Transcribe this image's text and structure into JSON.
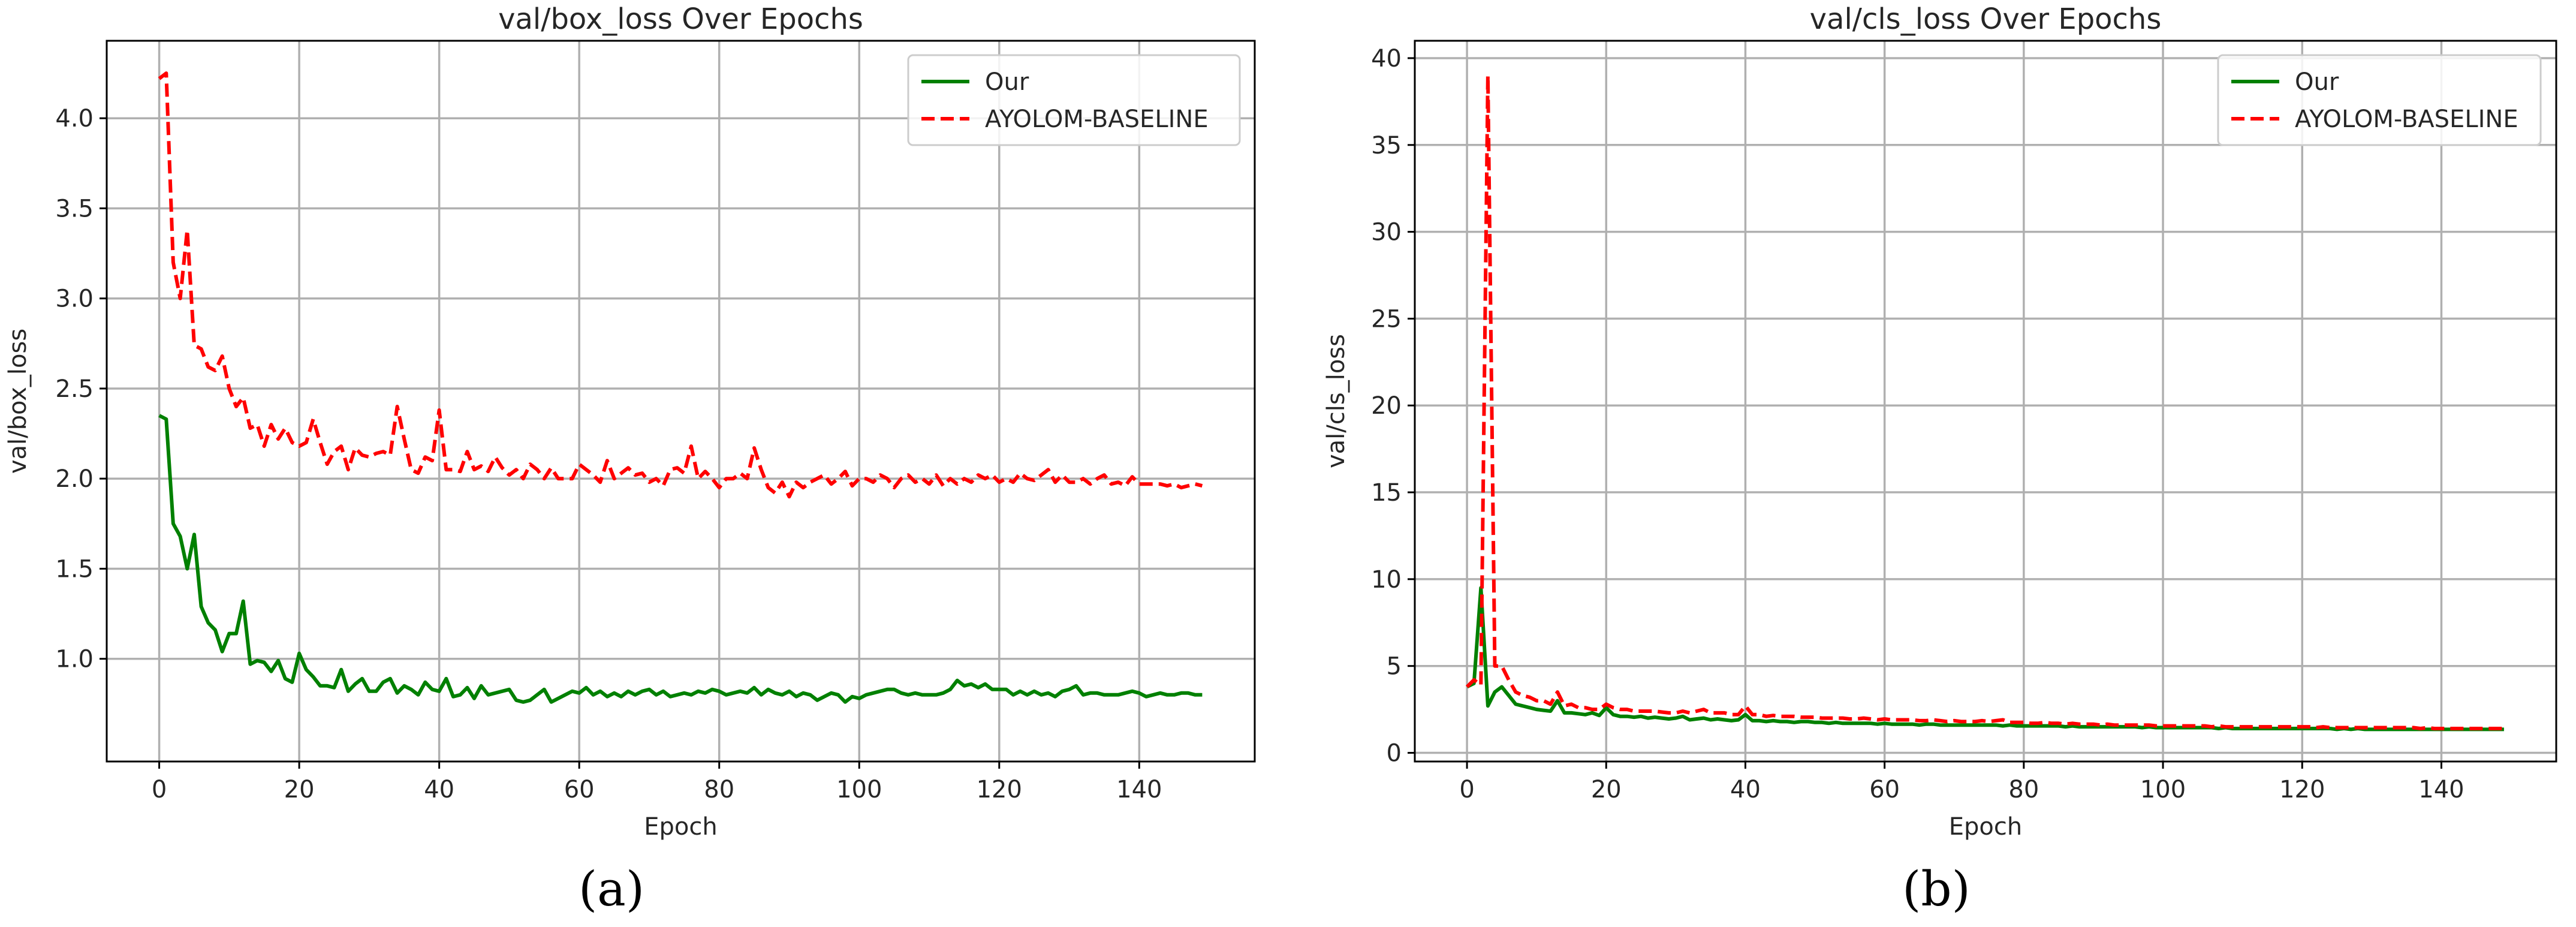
{
  "chart_data": [
    {
      "type": "line",
      "title": "val/box_loss Over Epochs",
      "xlabel": "Epoch",
      "ylabel": "val/box_loss",
      "caption": "(a)",
      "xlim": [
        -7.5,
        156.5
      ],
      "ylim": [
        0.43,
        4.43
      ],
      "xticks": [
        0,
        20,
        40,
        60,
        80,
        100,
        120,
        140
      ],
      "yticks": [
        1.0,
        1.5,
        2.0,
        2.5,
        3.0,
        3.5,
        4.0
      ],
      "ytick_labels": [
        "1.0",
        "1.5",
        "2.0",
        "2.5",
        "3.0",
        "3.5",
        "4.0"
      ],
      "grid": true,
      "legend_position": "top-right",
      "series": [
        {
          "name": "Our",
          "color": "#008000",
          "style": "solid",
          "values": [
            2.35,
            2.33,
            1.75,
            1.68,
            1.5,
            1.69,
            1.29,
            1.2,
            1.16,
            1.04,
            1.14,
            1.14,
            1.32,
            0.97,
            0.99,
            0.98,
            0.93,
            0.99,
            0.89,
            0.87,
            1.03,
            0.94,
            0.9,
            0.85,
            0.85,
            0.84,
            0.94,
            0.82,
            0.86,
            0.89,
            0.82,
            0.82,
            0.87,
            0.89,
            0.81,
            0.85,
            0.83,
            0.8,
            0.87,
            0.83,
            0.82,
            0.89,
            0.79,
            0.8,
            0.84,
            0.78,
            0.85,
            0.8,
            0.81,
            0.82,
            0.83,
            0.77,
            0.76,
            0.77,
            0.8,
            0.83,
            0.76,
            0.78,
            0.8,
            0.82,
            0.81,
            0.84,
            0.8,
            0.82,
            0.79,
            0.81,
            0.79,
            0.82,
            0.8,
            0.82,
            0.83,
            0.8,
            0.82,
            0.79,
            0.8,
            0.81,
            0.8,
            0.82,
            0.81,
            0.83,
            0.82,
            0.8,
            0.81,
            0.82,
            0.81,
            0.84,
            0.8,
            0.83,
            0.81,
            0.8,
            0.82,
            0.79,
            0.81,
            0.8,
            0.77,
            0.79,
            0.81,
            0.8,
            0.76,
            0.79,
            0.78,
            0.8,
            0.81,
            0.82,
            0.83,
            0.83,
            0.81,
            0.8,
            0.81,
            0.8,
            0.8,
            0.8,
            0.81,
            0.83,
            0.88,
            0.85,
            0.86,
            0.84,
            0.86,
            0.83,
            0.83,
            0.83,
            0.8,
            0.82,
            0.8,
            0.82,
            0.8,
            0.81,
            0.79,
            0.82,
            0.83,
            0.85,
            0.8,
            0.81,
            0.81,
            0.8,
            0.8,
            0.8,
            0.81,
            0.82,
            0.81,
            0.79,
            0.8,
            0.81,
            0.8,
            0.8,
            0.81,
            0.81,
            0.8,
            0.8
          ]
        },
        {
          "name": "AYOLOM-BASELINE",
          "color": "#ff0000",
          "style": "dashed",
          "values": [
            4.22,
            4.25,
            3.2,
            3.0,
            3.38,
            2.74,
            2.72,
            2.62,
            2.6,
            2.68,
            2.5,
            2.4,
            2.45,
            2.28,
            2.3,
            2.18,
            2.3,
            2.22,
            2.28,
            2.2,
            2.18,
            2.2,
            2.33,
            2.2,
            2.08,
            2.15,
            2.18,
            2.05,
            2.17,
            2.13,
            2.12,
            2.14,
            2.15,
            2.13,
            2.4,
            2.22,
            2.05,
            2.03,
            2.12,
            2.1,
            2.38,
            2.05,
            2.05,
            2.04,
            2.15,
            2.05,
            2.07,
            2.04,
            2.12,
            2.06,
            2.02,
            2.05,
            2.0,
            2.08,
            2.05,
            2.0,
            2.06,
            2.0,
            2.0,
            2.0,
            2.08,
            2.05,
            2.02,
            1.98,
            2.1,
            2.0,
            2.03,
            2.06,
            2.02,
            2.03,
            1.98,
            2.0,
            1.96,
            2.05,
            2.06,
            2.03,
            2.18,
            2.0,
            2.04,
            2.0,
            1.95,
            2.0,
            2.0,
            2.03,
            2.0,
            2.17,
            2.05,
            1.95,
            1.92,
            1.98,
            1.9,
            1.98,
            1.95,
            1.98,
            2.0,
            2.02,
            1.97,
            2.0,
            2.04,
            1.96,
            2.0,
            2.0,
            1.98,
            2.02,
            2.0,
            1.95,
            2.0,
            2.02,
            1.98,
            2.0,
            1.97,
            2.02,
            1.96,
            2.0,
            1.97,
            2.0,
            1.98,
            2.02,
            2.0,
            2.02,
            1.98,
            2.0,
            1.98,
            2.03,
            2.0,
            1.99,
            2.02,
            2.05,
            1.98,
            2.02,
            1.98,
            1.98,
            2.0,
            1.97,
            2.0,
            2.02,
            1.97,
            1.98,
            1.96,
            2.01,
            1.97,
            1.97,
            1.97,
            1.97,
            1.96,
            1.97,
            1.95,
            1.96,
            1.97,
            1.96
          ]
        }
      ]
    },
    {
      "type": "line",
      "title": "val/cls_loss Over Epochs",
      "xlabel": "Epoch",
      "ylabel": "val/cls_loss",
      "caption": "(b)",
      "xlim": [
        -7.5,
        156.5
      ],
      "ylim": [
        -0.5,
        41
      ],
      "xticks": [
        0,
        20,
        40,
        60,
        80,
        100,
        120,
        140
      ],
      "yticks": [
        0,
        5,
        10,
        15,
        20,
        25,
        30,
        35,
        40
      ],
      "ytick_labels": [
        "0",
        "5",
        "10",
        "15",
        "20",
        "25",
        "30",
        "35",
        "40"
      ],
      "grid": true,
      "legend_position": "top-right",
      "series": [
        {
          "name": "Our",
          "color": "#008000",
          "style": "solid",
          "values": [
            3.8,
            4.0,
            9.5,
            2.7,
            3.5,
            3.8,
            3.3,
            2.8,
            2.7,
            2.6,
            2.5,
            2.45,
            2.4,
            3.0,
            2.3,
            2.3,
            2.25,
            2.2,
            2.3,
            2.15,
            2.6,
            2.2,
            2.1,
            2.1,
            2.05,
            2.1,
            2.0,
            2.05,
            2.0,
            1.95,
            2.0,
            2.1,
            1.9,
            1.95,
            2.0,
            1.9,
            1.95,
            1.9,
            1.85,
            1.9,
            2.2,
            1.85,
            1.85,
            1.8,
            1.85,
            1.8,
            1.8,
            1.75,
            1.8,
            1.8,
            1.75,
            1.75,
            1.7,
            1.75,
            1.7,
            1.7,
            1.7,
            1.7,
            1.7,
            1.65,
            1.7,
            1.65,
            1.65,
            1.65,
            1.65,
            1.6,
            1.65,
            1.65,
            1.6,
            1.6,
            1.6,
            1.6,
            1.6,
            1.6,
            1.6,
            1.6,
            1.6,
            1.55,
            1.6,
            1.55,
            1.55,
            1.55,
            1.55,
            1.55,
            1.55,
            1.55,
            1.5,
            1.55,
            1.5,
            1.5,
            1.5,
            1.5,
            1.5,
            1.5,
            1.5,
            1.5,
            1.5,
            1.45,
            1.5,
            1.45,
            1.45,
            1.45,
            1.45,
            1.45,
            1.45,
            1.45,
            1.45,
            1.45,
            1.4,
            1.45,
            1.4,
            1.4,
            1.4,
            1.4,
            1.4,
            1.4,
            1.4,
            1.4,
            1.4,
            1.4,
            1.4,
            1.4,
            1.4,
            1.4,
            1.4,
            1.35,
            1.4,
            1.35,
            1.4,
            1.35,
            1.35,
            1.35,
            1.35,
            1.35,
            1.35,
            1.35,
            1.35,
            1.35,
            1.35,
            1.35,
            1.35,
            1.35,
            1.35,
            1.35,
            1.35,
            1.35,
            1.35,
            1.35,
            1.35,
            1.35
          ]
        },
        {
          "name": "AYOLOM-BASELINE",
          "color": "#ff0000",
          "style": "dashed",
          "values": [
            3.8,
            4.2,
            3.9,
            39.0,
            5.0,
            5.0,
            4.2,
            3.5,
            3.3,
            3.2,
            3.0,
            3.0,
            2.8,
            3.5,
            2.7,
            2.8,
            2.6,
            2.6,
            2.5,
            2.5,
            2.8,
            2.6,
            2.5,
            2.5,
            2.4,
            2.4,
            2.4,
            2.4,
            2.35,
            2.3,
            2.3,
            2.4,
            2.3,
            2.4,
            2.5,
            2.3,
            2.3,
            2.3,
            2.2,
            2.2,
            2.7,
            2.2,
            2.2,
            2.1,
            2.15,
            2.1,
            2.1,
            2.1,
            2.05,
            2.05,
            2.05,
            2.0,
            2.0,
            2.0,
            2.0,
            1.95,
            1.95,
            2.0,
            1.95,
            1.9,
            1.95,
            1.9,
            1.9,
            1.9,
            1.9,
            1.85,
            1.85,
            1.9,
            1.85,
            1.8,
            1.85,
            1.8,
            1.8,
            1.8,
            1.85,
            1.8,
            1.85,
            1.9,
            1.75,
            1.75,
            1.75,
            1.7,
            1.7,
            1.75,
            1.7,
            1.7,
            1.65,
            1.7,
            1.65,
            1.65,
            1.65,
            1.6,
            1.65,
            1.6,
            1.6,
            1.6,
            1.6,
            1.6,
            1.6,
            1.55,
            1.55,
            1.55,
            1.55,
            1.55,
            1.55,
            1.55,
            1.55,
            1.5,
            1.55,
            1.5,
            1.5,
            1.5,
            1.5,
            1.5,
            1.5,
            1.5,
            1.5,
            1.5,
            1.5,
            1.5,
            1.5,
            1.5,
            1.45,
            1.5,
            1.45,
            1.45,
            1.45,
            1.45,
            1.45,
            1.45,
            1.45,
            1.45,
            1.45,
            1.45,
            1.45,
            1.45,
            1.45,
            1.4,
            1.45,
            1.4,
            1.4,
            1.4,
            1.4,
            1.4,
            1.4,
            1.4,
            1.4,
            1.4,
            1.4,
            1.4
          ]
        }
      ]
    }
  ]
}
